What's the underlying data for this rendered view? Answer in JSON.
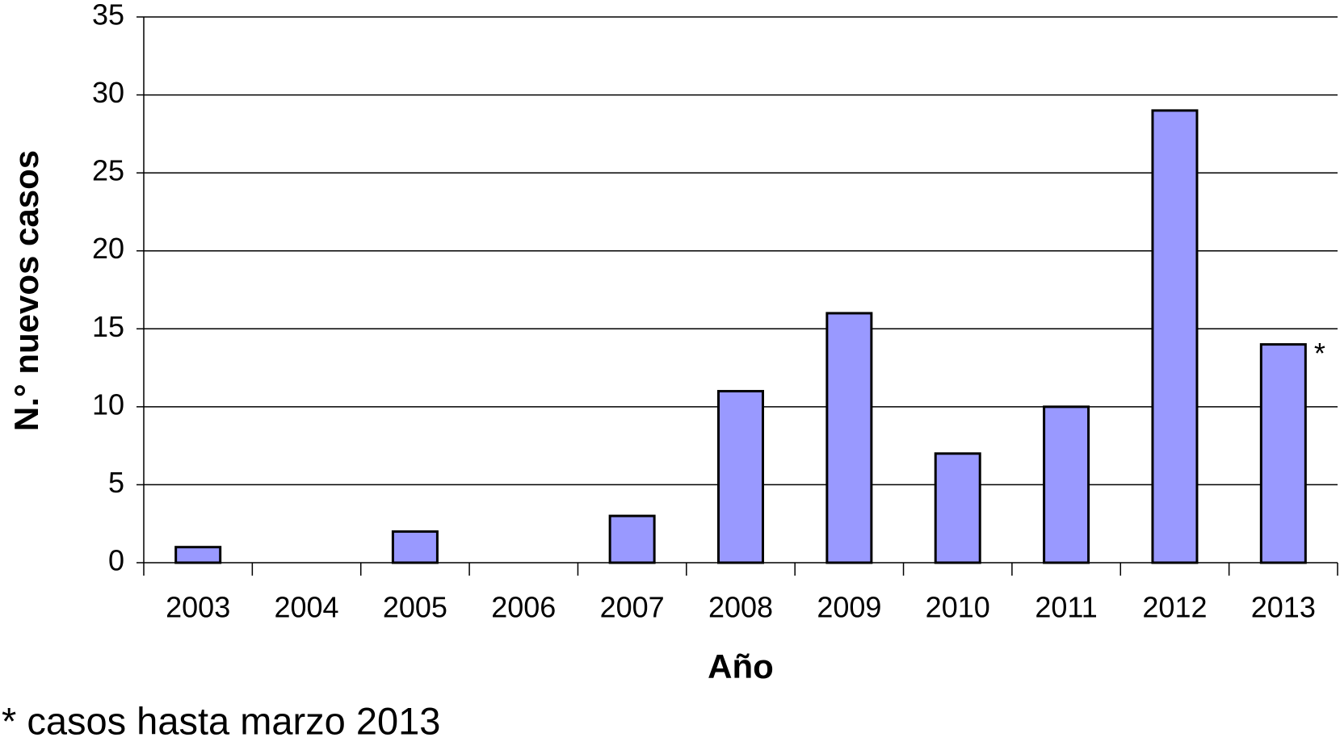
{
  "chart_data": {
    "type": "bar",
    "x_label": "Año",
    "y_label": "N.° nuevos casos",
    "categories": [
      "2003",
      "2004",
      "2005",
      "2006",
      "2007",
      "2008",
      "2009",
      "2010",
      "2011",
      "2012",
      "2013"
    ],
    "values": [
      1,
      0,
      2,
      0,
      3,
      11,
      16,
      7,
      10,
      29,
      14
    ],
    "color": "#9999ff",
    "ylim": [
      0,
      35
    ],
    "yticks": [
      0,
      5,
      10,
      15,
      20,
      25,
      30,
      35
    ],
    "grid": true,
    "annotation": "*",
    "footnote": "* casos hasta marzo 2013"
  }
}
